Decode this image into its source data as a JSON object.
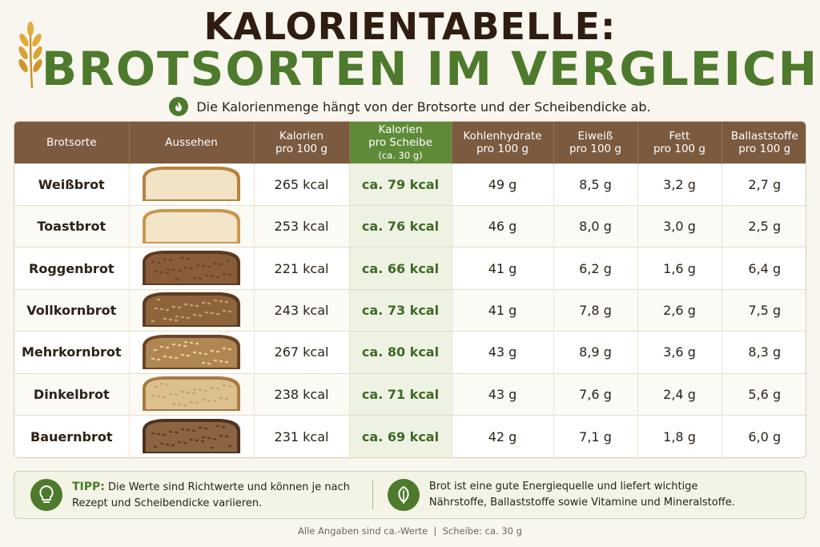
{
  "title": {
    "line1": "KALORIENTABELLE:",
    "line2": "BROTSORTEN IM VERGLEICH",
    "subtitle": "Die Kalorienmenge hängt von der Brotsorte und der Scheibendicke ab.",
    "badge_label": "kcal"
  },
  "colors": {
    "brown_header": "#7b5a3f",
    "accent_green": "#4d7a2c",
    "title_dark": "#2e1d10"
  },
  "headers": {
    "brotsorte": "Brotsorte",
    "aussehen": "Aussehen",
    "kalorien_1": "Kalorien",
    "kalorien_2": "pro 100 g",
    "scheibe_1": "Kalorien",
    "scheibe_2": "pro Scheibe",
    "scheibe_3": "(ca. 30 g)",
    "kh_1": "Kohlenhydrate",
    "kh_2": "pro 100 g",
    "eiweiss_1": "Eiweiß",
    "eiweiss_2": "pro 100 g",
    "fett_1": "Fett",
    "fett_2": "pro 100 g",
    "ballast_1": "Ballaststoffe",
    "ballast_2": "pro 100 g"
  },
  "rows": [
    {
      "name": "Weißbrot",
      "kcal100": "265 kcal",
      "kcal_slice": "ca. 79 kcal",
      "kh": "49 g",
      "eiweiss": "8,5 g",
      "fett": "3,2 g",
      "ballast": "2,7 g",
      "icon": "white-bread-slice"
    },
    {
      "name": "Toastbrot",
      "kcal100": "253 kcal",
      "kcal_slice": "ca. 76 kcal",
      "kh": "46 g",
      "eiweiss": "8,0 g",
      "fett": "3,0 g",
      "ballast": "2,5 g",
      "icon": "toast-bread-slice"
    },
    {
      "name": "Roggenbrot",
      "kcal100": "221 kcal",
      "kcal_slice": "ca. 66 kcal",
      "kh": "41 g",
      "eiweiss": "6,2 g",
      "fett": "1,6 g",
      "ballast": "6,4 g",
      "icon": "rye-bread-slice"
    },
    {
      "name": "Vollkornbrot",
      "kcal100": "243 kcal",
      "kcal_slice": "ca. 73 kcal",
      "kh": "41 g",
      "eiweiss": "7,8 g",
      "fett": "2,6 g",
      "ballast": "7,5 g",
      "icon": "wholegrain-bread-slice"
    },
    {
      "name": "Mehrkornbrot",
      "kcal100": "267 kcal",
      "kcal_slice": "ca. 80 kcal",
      "kh": "43 g",
      "eiweiss": "8,9 g",
      "fett": "3,6 g",
      "ballast": "8,3 g",
      "icon": "multigrain-bread-slice"
    },
    {
      "name": "Dinkelbrot",
      "kcal100": "238 kcal",
      "kcal_slice": "ca. 71 kcal",
      "kh": "43 g",
      "eiweiss": "7,6 g",
      "fett": "2,4 g",
      "ballast": "5,6 g",
      "icon": "spelt-bread-slice"
    },
    {
      "name": "Bauernbrot",
      "kcal100": "231 kcal",
      "kcal_slice": "ca. 69 kcal",
      "kh": "42 g",
      "eiweiss": "7,1 g",
      "fett": "1,8 g",
      "ballast": "6,0 g",
      "icon": "farmhouse-bread-slice"
    }
  ],
  "tips": {
    "tipp_label": "TIPP:",
    "tipp_text_1": "Die Werte sind Richtwerte und können je nach",
    "tipp_text_2": "Rezept und Scheibendicke variieren.",
    "info_text_1": "Brot ist eine gute Energiequelle und liefert wichtige",
    "info_text_2": "Nährstoffe, Ballaststoffe sowie Vitamine und Mineralstoffe."
  },
  "footer": {
    "left": "Alle Angaben sind ca.-Werte",
    "separator": "|",
    "right": "Scheibe: ca. 30 g"
  }
}
